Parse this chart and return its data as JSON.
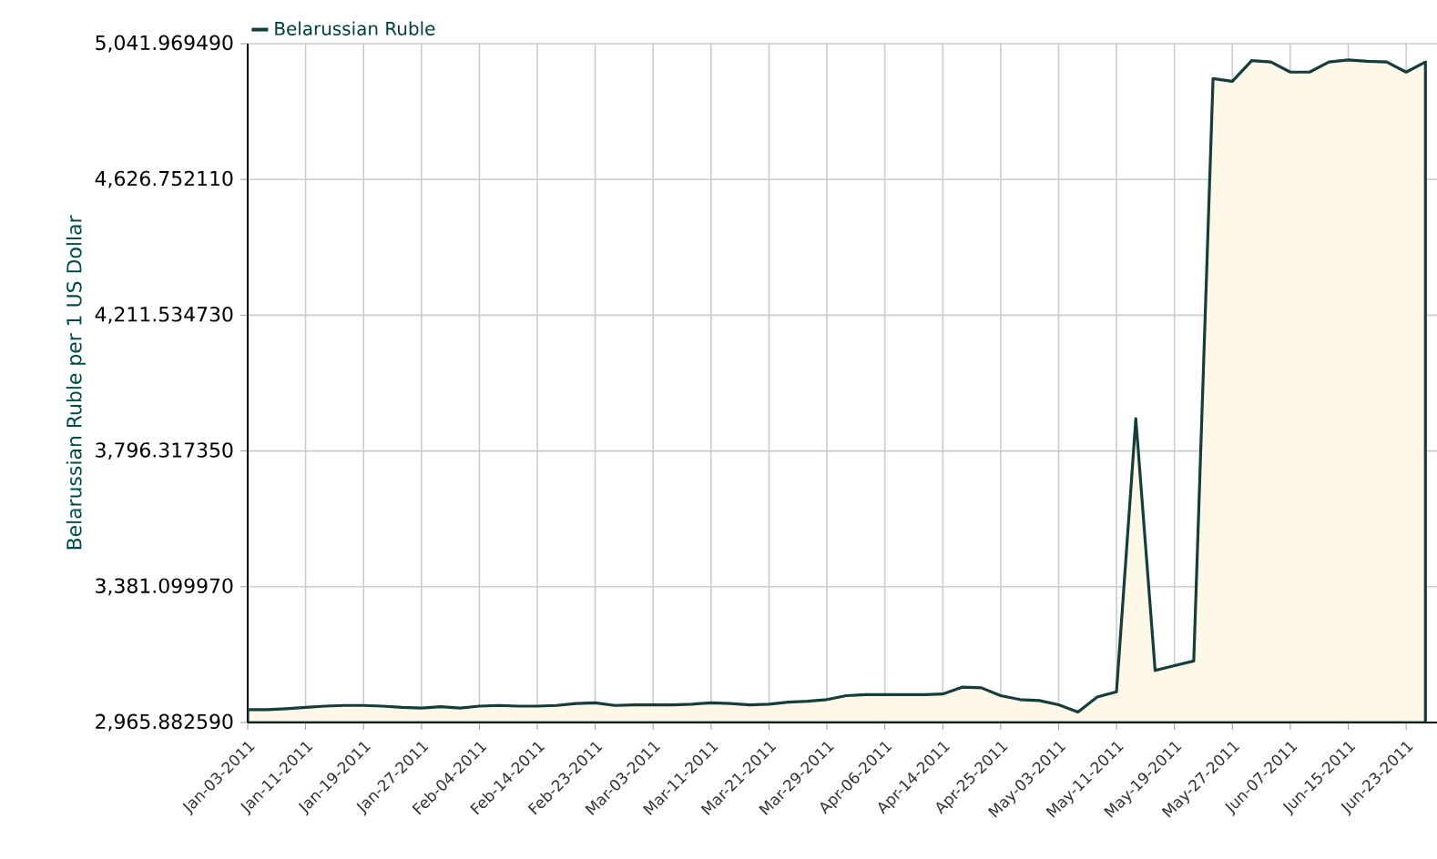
{
  "chart_data": {
    "type": "area",
    "ylabel": "Belarussian Ruble per 1 US Dollar",
    "categories": [
      "Jan-03-2011",
      null,
      null,
      "Jan-11-2011",
      null,
      null,
      "Jan-19-2011",
      null,
      null,
      "Jan-27-2011",
      null,
      null,
      "Feb-04-2011",
      null,
      null,
      "Feb-14-2011",
      null,
      null,
      "Feb-23-2011",
      null,
      null,
      "Mar-03-2011",
      null,
      null,
      "Mar-11-2011",
      null,
      null,
      "Mar-21-2011",
      null,
      null,
      "Mar-29-2011",
      null,
      null,
      "Apr-06-2011",
      null,
      null,
      "Apr-14-2011",
      null,
      null,
      "Apr-25-2011",
      null,
      null,
      "May-03-2011",
      null,
      null,
      "May-11-2011",
      null,
      null,
      "May-19-2011",
      null,
      null,
      "May-27-2011",
      null,
      null,
      "Jun-07-2011",
      null,
      null,
      "Jun-15-2011",
      null,
      null,
      "Jun-23-2011",
      null
    ],
    "series": [
      {
        "name": "Belarussian Ruble",
        "color": "#fdf8e8",
        "values": [
          3005,
          3005,
          3008,
          3012,
          3016,
          3018,
          3018,
          3016,
          3012,
          3010,
          3014,
          3010,
          3016,
          3018,
          3016,
          3016,
          3018,
          3024,
          3026,
          3018,
          3020,
          3020,
          3020,
          3022,
          3026,
          3024,
          3020,
          3022,
          3028,
          3031,
          3036,
          3048,
          3051,
          3051,
          3051,
          3051,
          3053,
          3074,
          3072,
          3048,
          3036,
          3033,
          3020,
          2998,
          3044,
          3060,
          3895,
          3125,
          3140,
          3154,
          4935,
          4927,
          4990,
          4986,
          4955,
          4955,
          4986,
          4992,
          4988,
          4986,
          4955,
          4986
        ]
      }
    ],
    "ylim": [
      2965.88259,
      5041.96949
    ],
    "yticks": [
      {
        "value": 2965.88259,
        "label": "2,965.882590"
      },
      {
        "value": 3381.09997,
        "label": "3,381.099970"
      },
      {
        "value": 3796.31735,
        "label": "3,796.317350"
      },
      {
        "value": 4211.53473,
        "label": "4,211.534730"
      },
      {
        "value": 4626.75211,
        "label": "4,626.752110"
      },
      {
        "value": 5041.96949,
        "label": "5,041.969490"
      }
    ],
    "grid": true,
    "legend": "top left"
  }
}
